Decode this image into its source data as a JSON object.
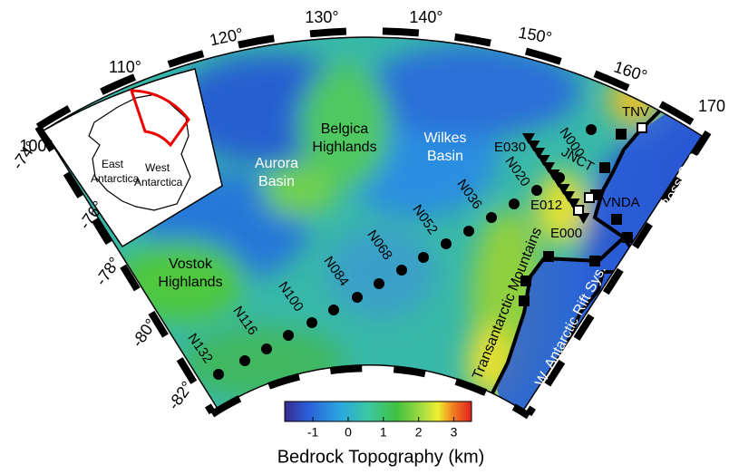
{
  "map": {
    "longitude_labels": [
      "100°",
      "110°",
      "120°",
      "130°",
      "140°",
      "150°",
      "160°",
      "170"
    ],
    "latitude_labels": [
      "-74°",
      "-76°",
      "-78°",
      "-80°",
      "-82°"
    ],
    "regions": {
      "aurora": [
        "Aurora",
        "Basin"
      ],
      "belgica": [
        "Belgica",
        "Highlands"
      ],
      "wilkes": [
        "Wilkes",
        "Basin"
      ],
      "vostok": [
        "Vostok",
        "Highlands"
      ],
      "transantarctic": "Transantarctic Mountains",
      "rift": "W. Antarctic Rift Sys.",
      "ross": "Ross Sea"
    },
    "stations": [
      "E030",
      "N000",
      "TNV",
      "N020",
      "JNCT",
      "N036",
      "E012",
      "VNDA",
      "N052",
      "E000",
      "N068",
      "N084",
      "N100",
      "N116",
      "N132"
    ],
    "inset": {
      "east": [
        "East",
        "Antarctica"
      ],
      "west": [
        "West",
        "Antarctica"
      ]
    },
    "colorbar": {
      "range": [
        -1.8,
        3.5
      ],
      "ticks": [
        -1,
        0,
        1,
        2,
        3
      ],
      "label": "Bedrock Topography (km)"
    }
  }
}
